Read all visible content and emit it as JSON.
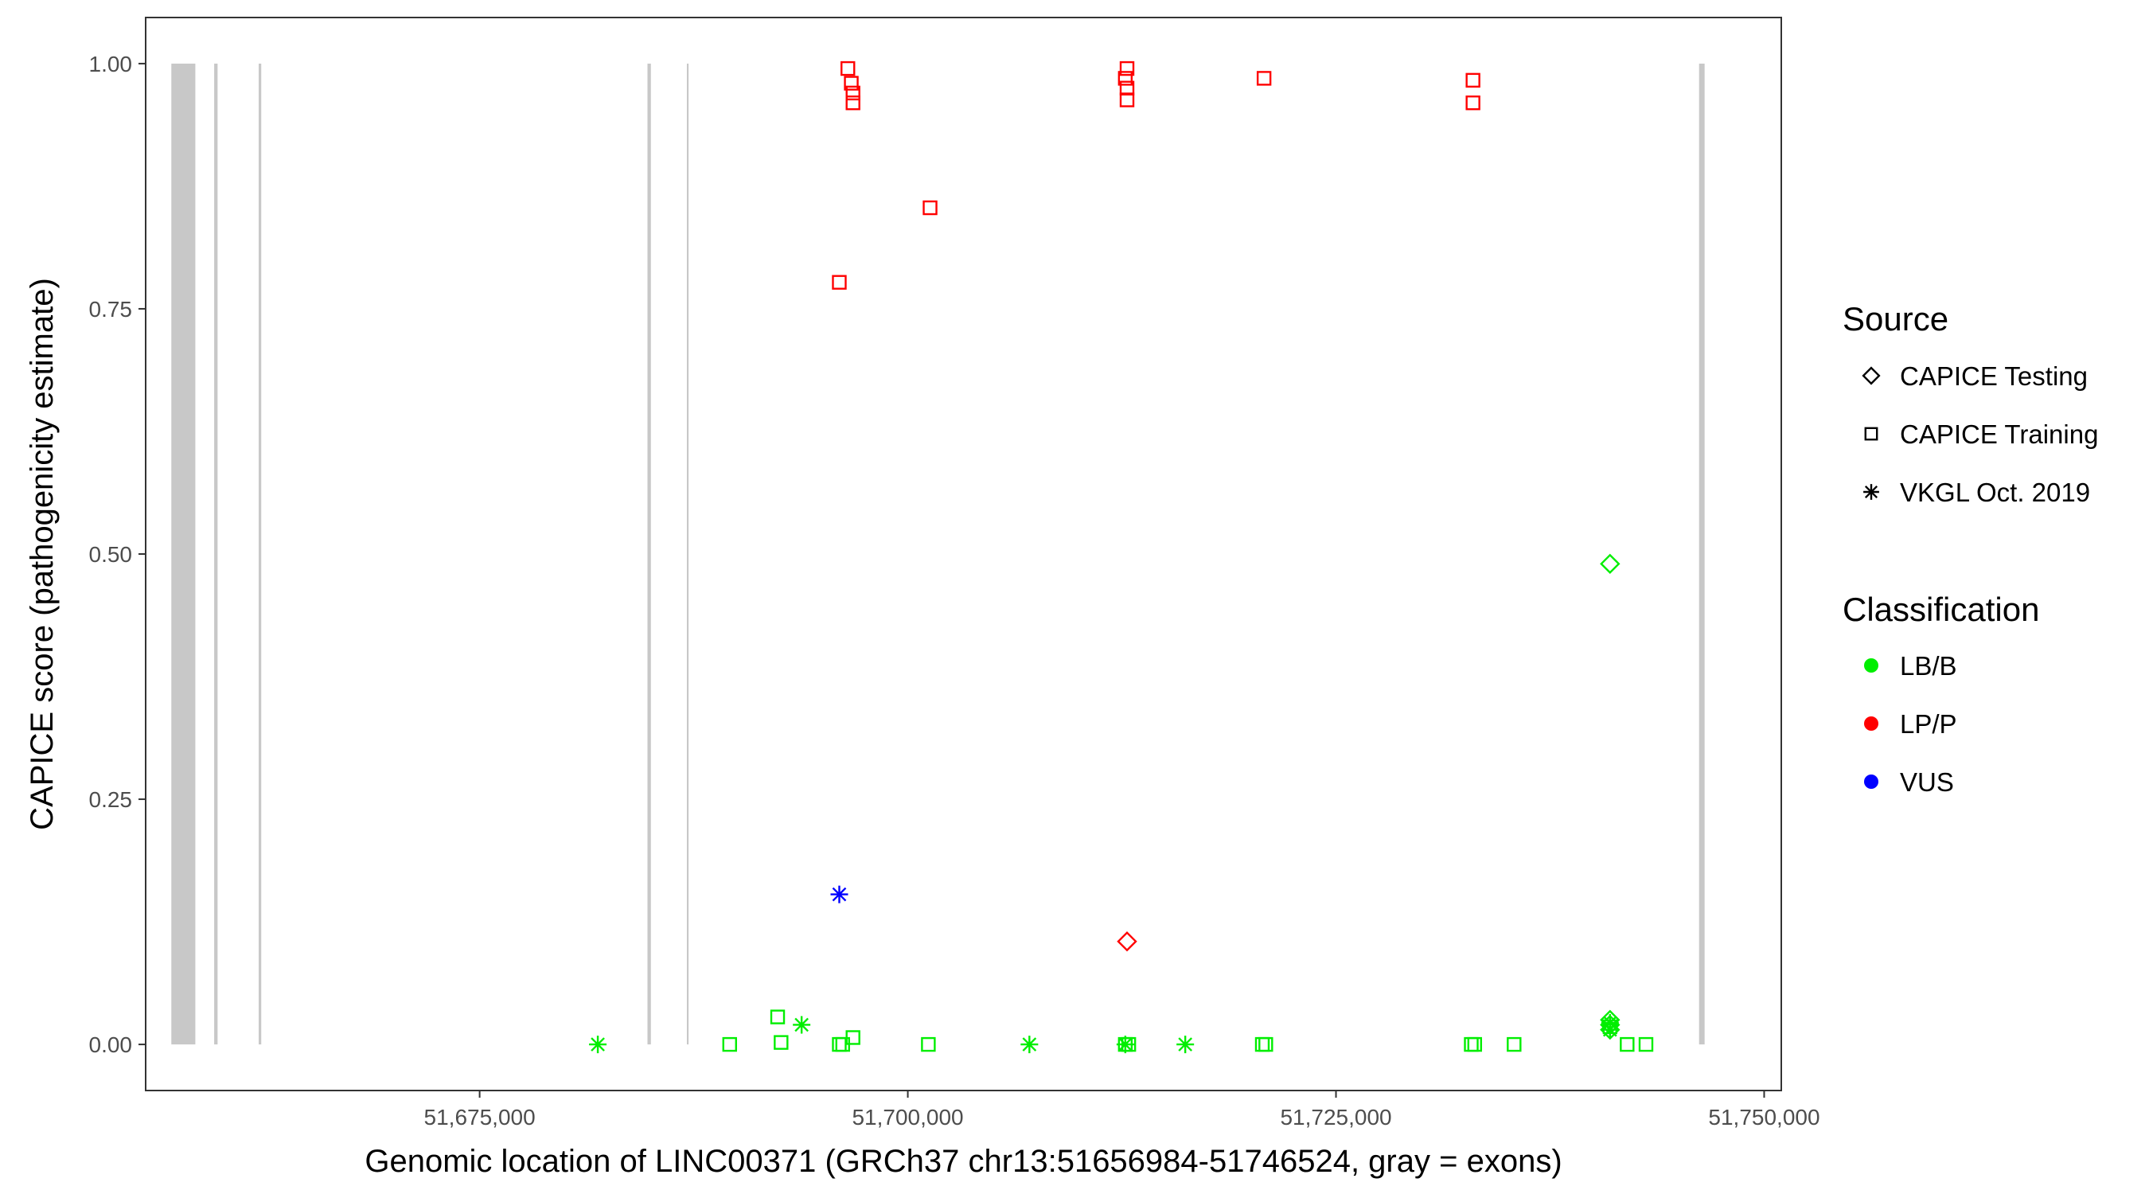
{
  "chart_data": {
    "type": "scatter",
    "title": "",
    "xlabel": "Genomic location of LINC00371 (GRCh37 chr13:51656984-51746524, gray = exons)",
    "ylabel": "CAPICE score (pathogenicity estimate)",
    "xlim": [
      51655500,
      51751000
    ],
    "ylim": [
      -0.047,
      1.047
    ],
    "x_ticks": [
      51675000,
      51700000,
      51725000,
      51750000
    ],
    "x_tick_labels": [
      "51,675,000",
      "51,700,000",
      "51,725,000",
      "51,750,000"
    ],
    "y_ticks": [
      0,
      0.25,
      0.5,
      0.75,
      1
    ],
    "y_tick_labels": [
      "0.00",
      "0.25",
      "0.50",
      "0.75",
      "1.00"
    ],
    "grid": false,
    "legend_position": "right",
    "exons": [
      {
        "start": 51657000,
        "end": 51658400
      },
      {
        "start": 51659500,
        "end": 51659700
      },
      {
        "start": 51662100,
        "end": 51662250
      },
      {
        "start": 51684800,
        "end": 51685000
      },
      {
        "start": 51687100,
        "end": 51687200
      },
      {
        "start": 51746200,
        "end": 51746524
      }
    ],
    "exon_color": "#c8c8c8",
    "legend": {
      "source": {
        "title": "Source",
        "items": [
          {
            "label": "CAPICE Testing",
            "shape": "diamond"
          },
          {
            "label": "CAPICE Training",
            "shape": "square"
          },
          {
            "label": "VKGL Oct. 2019",
            "shape": "asterisk"
          }
        ]
      },
      "classification": {
        "title": "Classification",
        "items": [
          {
            "label": "LB/B",
            "color": "#00ee00"
          },
          {
            "label": "LP/P",
            "color": "#ff0000"
          },
          {
            "label": "VUS",
            "color": "#0000ff"
          }
        ]
      }
    },
    "series": [
      {
        "source": "CAPICE Training",
        "classification": "LP/P",
        "shape": "square",
        "color": "#ff0000",
        "points": [
          {
            "x": 51696500,
            "y": 0.995
          },
          {
            "x": 51696700,
            "y": 0.98
          },
          {
            "x": 51696800,
            "y": 0.97
          },
          {
            "x": 51696800,
            "y": 0.96
          },
          {
            "x": 51696000,
            "y": 0.777
          },
          {
            "x": 51701300,
            "y": 0.853
          },
          {
            "x": 51712800,
            "y": 0.995
          },
          {
            "x": 51712700,
            "y": 0.985
          },
          {
            "x": 51712800,
            "y": 0.975
          },
          {
            "x": 51712800,
            "y": 0.963
          },
          {
            "x": 51720800,
            "y": 0.985
          },
          {
            "x": 51733000,
            "y": 0.983
          },
          {
            "x": 51733000,
            "y": 0.96
          }
        ]
      },
      {
        "source": "CAPICE Testing",
        "classification": "LP/P",
        "shape": "diamond",
        "color": "#ff0000",
        "points": [
          {
            "x": 51712800,
            "y": 0.105
          }
        ]
      },
      {
        "source": "CAPICE Testing",
        "classification": "LB/B",
        "shape": "diamond",
        "color": "#00ee00",
        "points": [
          {
            "x": 51741000,
            "y": 0.49
          },
          {
            "x": 51741000,
            "y": 0.025
          },
          {
            "x": 51741000,
            "y": 0.02
          },
          {
            "x": 51741000,
            "y": 0.015
          }
        ]
      },
      {
        "source": "VKGL Oct. 2019",
        "classification": "VUS",
        "shape": "asterisk",
        "color": "#0000ff",
        "points": [
          {
            "x": 51696000,
            "y": 0.153
          }
        ]
      },
      {
        "source": "VKGL Oct. 2019",
        "classification": "LB/B",
        "shape": "asterisk",
        "color": "#00ee00",
        "points": [
          {
            "x": 51681900,
            "y": 0.0
          },
          {
            "x": 51693800,
            "y": 0.02
          },
          {
            "x": 51707100,
            "y": 0.0
          },
          {
            "x": 51712700,
            "y": 0.0
          },
          {
            "x": 51716200,
            "y": 0.0
          },
          {
            "x": 51741000,
            "y": 0.022
          },
          {
            "x": 51741000,
            "y": 0.015
          }
        ]
      },
      {
        "source": "CAPICE Training",
        "classification": "LB/B",
        "shape": "square",
        "color": "#00ee00",
        "points": [
          {
            "x": 51689600,
            "y": 0.0
          },
          {
            "x": 51692400,
            "y": 0.028
          },
          {
            "x": 51692600,
            "y": 0.002
          },
          {
            "x": 51696000,
            "y": 0.0
          },
          {
            "x": 51696200,
            "y": 0.0
          },
          {
            "x": 51696800,
            "y": 0.007
          },
          {
            "x": 51701200,
            "y": 0.0
          },
          {
            "x": 51712700,
            "y": 0.0
          },
          {
            "x": 51712900,
            "y": 0.0
          },
          {
            "x": 51720700,
            "y": 0.0
          },
          {
            "x": 51720900,
            "y": 0.0
          },
          {
            "x": 51732900,
            "y": 0.0
          },
          {
            "x": 51733100,
            "y": 0.0
          },
          {
            "x": 51735400,
            "y": 0.0
          },
          {
            "x": 51741000,
            "y": 0.018
          },
          {
            "x": 51742000,
            "y": 0.0
          },
          {
            "x": 51743100,
            "y": 0.0
          }
        ]
      }
    ]
  }
}
